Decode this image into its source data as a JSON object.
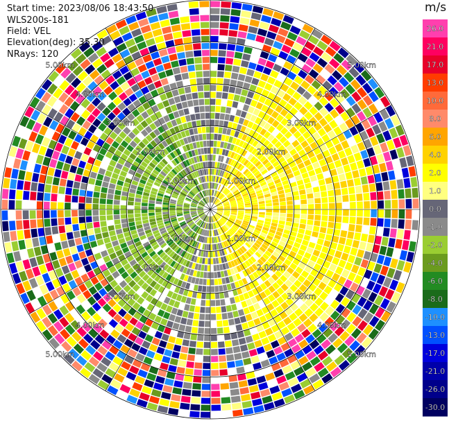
{
  "header": {
    "start_time": "Start time: 2023/08/06 18:43:50",
    "instrument": "WLS200s-181",
    "field": "Field: VEL",
    "elevation": "Elevation(deg): 35.30",
    "nrays": "NRays: 120"
  },
  "chart_data": {
    "type": "heatmap",
    "projection": "polar (PPI)",
    "range_rings": [
      "1.00km",
      "2.00km",
      "3.00km",
      "4.00km",
      "5.00km"
    ],
    "colorbar": {
      "unit": "m/s",
      "ticks": [
        "26.0",
        "21.0",
        "17.0",
        "13.0",
        "10.0",
        "8.0",
        "6.0",
        "4.0",
        "2.0",
        "1.0",
        "0.0",
        "-1.0",
        "-2.0",
        "-4.0",
        "-6.0",
        "-8.0",
        "-10.0",
        "-13.0",
        "-17.0",
        "-21.0",
        "-26.0",
        "-30.0"
      ],
      "colors": [
        "#ff3fae",
        "#ff0060",
        "#e8002a",
        "#ff3c00",
        "#ff6a3a",
        "#ff8a6a",
        "#ffa500",
        "#ffd200",
        "#ffff00",
        "#ffff80",
        "#666677",
        "#8a8a8a",
        "#9acd32",
        "#6b9b1e",
        "#228b22",
        "#1a6b1a",
        "#1e90ff",
        "#0050ff",
        "#0000dd",
        "#0000aa",
        "#00008b",
        "#000060"
      ]
    },
    "nrays": 120,
    "max_range_km": 5.0
  }
}
